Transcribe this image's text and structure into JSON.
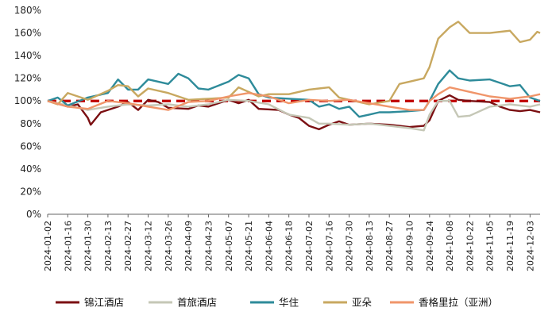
{
  "chart_data": {
    "type": "line",
    "title": "",
    "xlabel": "",
    "ylabel": "",
    "ylim": [
      0,
      180
    ],
    "y_ticks": [
      "0%",
      "20%",
      "40%",
      "60%",
      "80%",
      "100%",
      "120%",
      "140%",
      "160%",
      "180%"
    ],
    "y_tick_values": [
      0,
      20,
      40,
      60,
      80,
      100,
      120,
      140,
      160,
      180
    ],
    "x_ticks": [
      "2024-01-02",
      "2024-01-16",
      "2024-01-30",
      "2024-02-13",
      "2024-02-27",
      "2024-03-12",
      "2024-03-26",
      "2024-04-09",
      "2024-04-23",
      "2024-05-07",
      "2024-05-21",
      "2024-06-04",
      "2024-06-18",
      "2024-07-02",
      "2024-07-16",
      "2024-07-30",
      "2024-08-13",
      "2024-08-27",
      "2024-09-10",
      "2024-09-24",
      "2024-10-08",
      "2024-10-22",
      "2024-11-05",
      "2024-11-19",
      "2024-12-03"
    ],
    "x_range": [
      "2024-01-02",
      "2024-12-10"
    ],
    "grid": false,
    "legend_position": "bottom",
    "reference_line": {
      "value": 100,
      "color": "#c00000",
      "style": "dashed"
    },
    "series": [
      {
        "name": "锦江酒店",
        "color": "#7b0f12",
        "points": [
          [
            "2024-01-02",
            100
          ],
          [
            "2024-01-16",
            95
          ],
          [
            "2024-01-23",
            97
          ],
          [
            "2024-01-30",
            85
          ],
          [
            "2024-02-01",
            79
          ],
          [
            "2024-02-08",
            90
          ],
          [
            "2024-02-20",
            95
          ],
          [
            "2024-02-27",
            99
          ],
          [
            "2024-03-05",
            92
          ],
          [
            "2024-03-12",
            101
          ],
          [
            "2024-03-19",
            99
          ],
          [
            "2024-03-26",
            94
          ],
          [
            "2024-04-09",
            93
          ],
          [
            "2024-04-16",
            96
          ],
          [
            "2024-04-23",
            95
          ],
          [
            "2024-05-07",
            101
          ],
          [
            "2024-05-14",
            98
          ],
          [
            "2024-05-21",
            101
          ],
          [
            "2024-05-28",
            93
          ],
          [
            "2024-06-11",
            92
          ],
          [
            "2024-06-18",
            88
          ],
          [
            "2024-06-25",
            85
          ],
          [
            "2024-07-02",
            78
          ],
          [
            "2024-07-09",
            75
          ],
          [
            "2024-07-16",
            79
          ],
          [
            "2024-07-23",
            82
          ],
          [
            "2024-07-30",
            79
          ],
          [
            "2024-08-13",
            80
          ],
          [
            "2024-08-27",
            79
          ],
          [
            "2024-09-03",
            78
          ],
          [
            "2024-09-10",
            77
          ],
          [
            "2024-09-20",
            78
          ],
          [
            "2024-09-24",
            83
          ],
          [
            "2024-09-30",
            100
          ],
          [
            "2024-10-08",
            105
          ],
          [
            "2024-10-14",
            101
          ],
          [
            "2024-10-22",
            100
          ],
          [
            "2024-11-05",
            99
          ],
          [
            "2024-11-12",
            95
          ],
          [
            "2024-11-19",
            92
          ],
          [
            "2024-11-26",
            91
          ],
          [
            "2024-12-03",
            92
          ],
          [
            "2024-12-10",
            90
          ]
        ]
      },
      {
        "name": "首旅酒店",
        "color": "#c5c7b6",
        "points": [
          [
            "2024-01-02",
            100
          ],
          [
            "2024-01-16",
            96
          ],
          [
            "2024-01-30",
            92
          ],
          [
            "2024-02-13",
            95
          ],
          [
            "2024-02-27",
            97
          ],
          [
            "2024-03-12",
            96
          ],
          [
            "2024-03-26",
            97
          ],
          [
            "2024-04-09",
            95
          ],
          [
            "2024-04-23",
            97
          ],
          [
            "2024-05-07",
            101
          ],
          [
            "2024-05-21",
            100
          ],
          [
            "2024-06-04",
            97
          ],
          [
            "2024-06-18",
            88
          ],
          [
            "2024-07-02",
            85
          ],
          [
            "2024-07-09",
            80
          ],
          [
            "2024-07-16",
            80
          ],
          [
            "2024-07-30",
            79
          ],
          [
            "2024-08-13",
            80
          ],
          [
            "2024-08-27",
            78
          ],
          [
            "2024-09-10",
            76
          ],
          [
            "2024-09-20",
            74
          ],
          [
            "2024-09-24",
            88
          ],
          [
            "2024-09-30",
            100
          ],
          [
            "2024-10-08",
            100
          ],
          [
            "2024-10-14",
            86
          ],
          [
            "2024-10-22",
            87
          ],
          [
            "2024-11-05",
            95
          ],
          [
            "2024-11-19",
            97
          ],
          [
            "2024-12-03",
            95
          ],
          [
            "2024-12-10",
            97
          ]
        ]
      },
      {
        "name": "华住",
        "color": "#2e8b9a",
        "points": [
          [
            "2024-01-02",
            100
          ],
          [
            "2024-01-09",
            103
          ],
          [
            "2024-01-16",
            96
          ],
          [
            "2024-01-30",
            103
          ],
          [
            "2024-02-13",
            107
          ],
          [
            "2024-02-20",
            119
          ],
          [
            "2024-02-27",
            110
          ],
          [
            "2024-03-05",
            110
          ],
          [
            "2024-03-12",
            119
          ],
          [
            "2024-03-26",
            115
          ],
          [
            "2024-04-02",
            124
          ],
          [
            "2024-04-09",
            120
          ],
          [
            "2024-04-16",
            111
          ],
          [
            "2024-04-23",
            110
          ],
          [
            "2024-05-07",
            117
          ],
          [
            "2024-05-14",
            123
          ],
          [
            "2024-05-21",
            120
          ],
          [
            "2024-05-28",
            106
          ],
          [
            "2024-06-04",
            103
          ],
          [
            "2024-06-18",
            102
          ],
          [
            "2024-07-02",
            101
          ],
          [
            "2024-07-09",
            95
          ],
          [
            "2024-07-16",
            97
          ],
          [
            "2024-07-23",
            93
          ],
          [
            "2024-07-30",
            95
          ],
          [
            "2024-08-06",
            86
          ],
          [
            "2024-08-13",
            88
          ],
          [
            "2024-08-20",
            90
          ],
          [
            "2024-08-27",
            90
          ],
          [
            "2024-09-10",
            91
          ],
          [
            "2024-09-20",
            92
          ],
          [
            "2024-09-24",
            100
          ],
          [
            "2024-09-30",
            115
          ],
          [
            "2024-10-08",
            127
          ],
          [
            "2024-10-14",
            120
          ],
          [
            "2024-10-22",
            118
          ],
          [
            "2024-11-05",
            119
          ],
          [
            "2024-11-19",
            113
          ],
          [
            "2024-11-26",
            114
          ],
          [
            "2024-12-03",
            103
          ],
          [
            "2024-12-10",
            100
          ]
        ]
      },
      {
        "name": "亚朵",
        "color": "#c8a860",
        "points": [
          [
            "2024-01-02",
            100
          ],
          [
            "2024-01-09",
            97
          ],
          [
            "2024-01-16",
            107
          ],
          [
            "2024-01-30",
            101
          ],
          [
            "2024-02-13",
            109
          ],
          [
            "2024-02-20",
            114
          ],
          [
            "2024-02-27",
            113
          ],
          [
            "2024-03-05",
            104
          ],
          [
            "2024-03-12",
            111
          ],
          [
            "2024-03-26",
            107
          ],
          [
            "2024-04-09",
            101
          ],
          [
            "2024-04-23",
            102
          ],
          [
            "2024-05-07",
            103
          ],
          [
            "2024-05-14",
            112
          ],
          [
            "2024-05-21",
            108
          ],
          [
            "2024-05-28",
            104
          ],
          [
            "2024-06-04",
            106
          ],
          [
            "2024-06-18",
            106
          ],
          [
            "2024-07-02",
            110
          ],
          [
            "2024-07-09",
            111
          ],
          [
            "2024-07-16",
            112
          ],
          [
            "2024-07-23",
            103
          ],
          [
            "2024-07-30",
            101
          ],
          [
            "2024-08-13",
            97
          ],
          [
            "2024-08-27",
            100
          ],
          [
            "2024-09-03",
            115
          ],
          [
            "2024-09-10",
            117
          ],
          [
            "2024-09-20",
            120
          ],
          [
            "2024-09-24",
            130
          ],
          [
            "2024-09-30",
            155
          ],
          [
            "2024-10-08",
            165
          ],
          [
            "2024-10-14",
            170
          ],
          [
            "2024-10-22",
            160
          ],
          [
            "2024-11-05",
            160
          ],
          [
            "2024-11-19",
            162
          ],
          [
            "2024-11-26",
            152
          ],
          [
            "2024-12-03",
            154
          ],
          [
            "2024-12-08",
            161
          ],
          [
            "2024-12-10",
            160
          ]
        ]
      },
      {
        "name": "香格里拉（亚洲）",
        "color": "#f0956a",
        "points": [
          [
            "2024-01-02",
            100
          ],
          [
            "2024-01-16",
            95
          ],
          [
            "2024-01-30",
            93
          ],
          [
            "2024-02-13",
            100
          ],
          [
            "2024-02-27",
            98
          ],
          [
            "2024-03-12",
            95
          ],
          [
            "2024-03-26",
            92
          ],
          [
            "2024-04-09",
            99
          ],
          [
            "2024-04-23",
            100
          ],
          [
            "2024-05-07",
            104
          ],
          [
            "2024-05-21",
            107
          ],
          [
            "2024-06-04",
            104
          ],
          [
            "2024-06-18",
            98
          ],
          [
            "2024-07-02",
            101
          ],
          [
            "2024-07-16",
            100
          ],
          [
            "2024-07-30",
            101
          ],
          [
            "2024-08-13",
            98
          ],
          [
            "2024-08-27",
            95
          ],
          [
            "2024-09-10",
            92
          ],
          [
            "2024-09-20",
            92
          ],
          [
            "2024-09-24",
            100
          ],
          [
            "2024-09-30",
            106
          ],
          [
            "2024-10-08",
            112
          ],
          [
            "2024-10-22",
            108
          ],
          [
            "2024-11-05",
            104
          ],
          [
            "2024-11-19",
            102
          ],
          [
            "2024-12-03",
            104
          ],
          [
            "2024-12-10",
            106
          ]
        ]
      }
    ]
  }
}
